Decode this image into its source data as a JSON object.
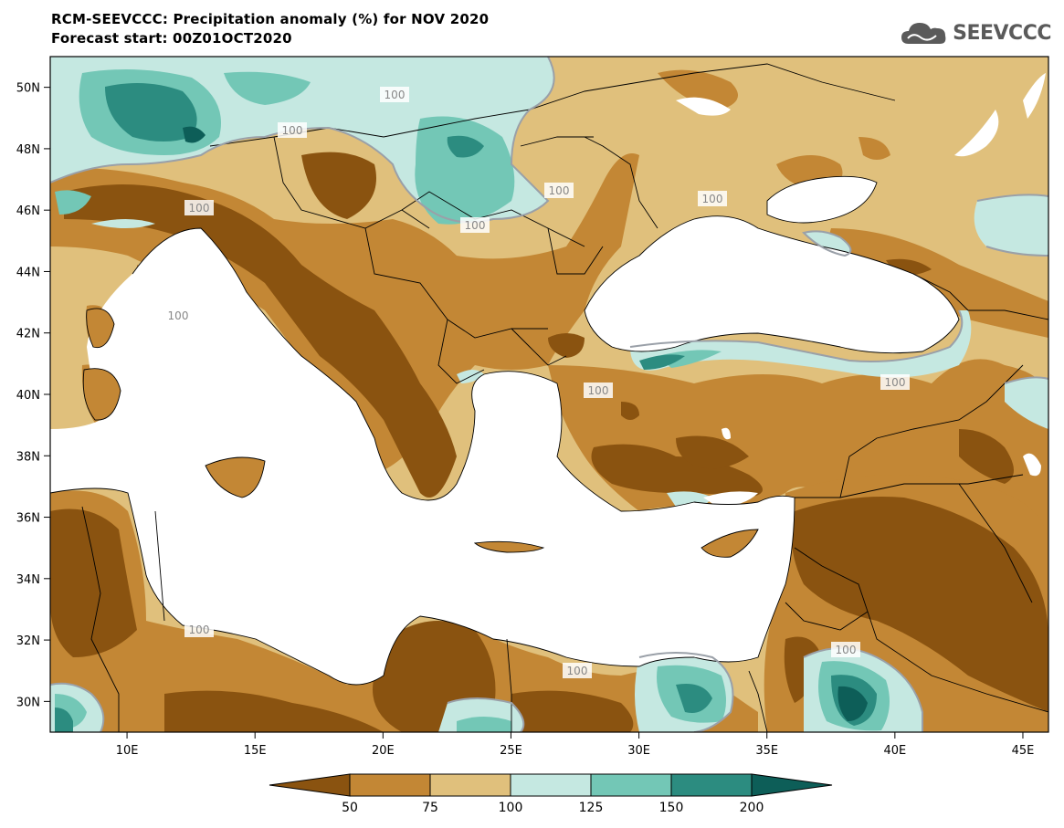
{
  "title": "RCM-SEEVCCC: Precipitation anomaly (%) for NOV 2020",
  "subtitle": "Forecast start: 00Z01OCT2020",
  "logo_text": "SEEVCCC",
  "y_axis_labels": [
    "50N",
    "48N",
    "46N",
    "44N",
    "42N",
    "40N",
    "38N",
    "36N",
    "34N",
    "32N",
    "30N"
  ],
  "x_axis_labels": [
    "10E",
    "15E",
    "20E",
    "25E",
    "30E",
    "35E",
    "40E",
    "45E"
  ],
  "contour_labels": [
    "100",
    "100",
    "100",
    "100",
    "100",
    "100",
    "100",
    "100",
    "100",
    "100",
    "100",
    "100"
  ],
  "colorbar": {
    "ticks": [
      "50",
      "75",
      "100",
      "125",
      "150",
      "200"
    ],
    "colors": [
      "#8a5310",
      "#c38735",
      "#e0c07c",
      "#c5e8e1",
      "#73c7b6",
      "#2c8c80",
      "#0d5e58"
    ]
  }
}
